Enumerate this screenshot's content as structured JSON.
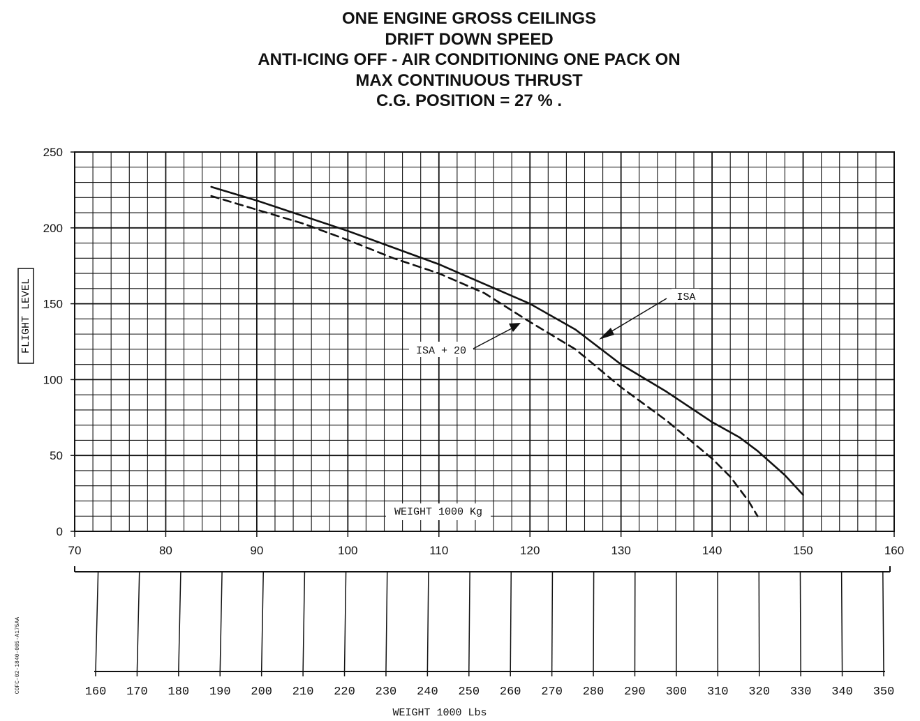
{
  "title_lines": [
    "ONE ENGINE GROSS CEILINGS",
    "DRIFT DOWN SPEED",
    "ANTI-ICING OFF - AIR CONDITIONING ONE PACK ON",
    "MAX CONTINUOUS THRUST",
    "C.G. POSITION = 27 % ."
  ],
  "side_code": "COFC-02-1840-005-A175AA",
  "chart_data": {
    "type": "line",
    "ylabel": "FLIGHT LEVEL",
    "xlabel": "WEIGHT 1000 Kg",
    "xlabel_secondary": "WEIGHT 1000 Lbs",
    "xlim": [
      70,
      160
    ],
    "ylim": [
      0,
      250
    ],
    "grid": true,
    "x_ticks": [
      "70",
      "80",
      "90",
      "100",
      "110",
      "120",
      "130",
      "140",
      "150",
      "160"
    ],
    "y_ticks": [
      "0",
      "50",
      "100",
      "150",
      "200",
      "250"
    ],
    "secondary_ticks": [
      "160",
      "170",
      "180",
      "190",
      "200",
      "210",
      "220",
      "230",
      "240",
      "250",
      "260",
      "270",
      "280",
      "290",
      "300",
      "310",
      "320",
      "330",
      "340",
      "350"
    ],
    "series": [
      {
        "name": "ISA",
        "style": "solid",
        "x": [
          85,
          90,
          95,
          100,
          105,
          110,
          115,
          120,
          125,
          130,
          135,
          140,
          143,
          145,
          148,
          150
        ],
        "y": [
          227,
          218,
          208,
          198,
          187,
          176,
          163,
          150,
          133,
          110,
          92,
          72,
          62,
          53,
          37,
          24
        ]
      },
      {
        "name": "ISA + 20",
        "style": "dashed",
        "x": [
          85,
          90,
          95,
          100,
          105,
          110,
          115,
          120,
          125,
          130,
          135,
          140,
          142,
          144,
          145
        ],
        "y": [
          221,
          212,
          203,
          192,
          180,
          170,
          157,
          138,
          120,
          95,
          73,
          48,
          36,
          20,
          10
        ]
      }
    ]
  }
}
